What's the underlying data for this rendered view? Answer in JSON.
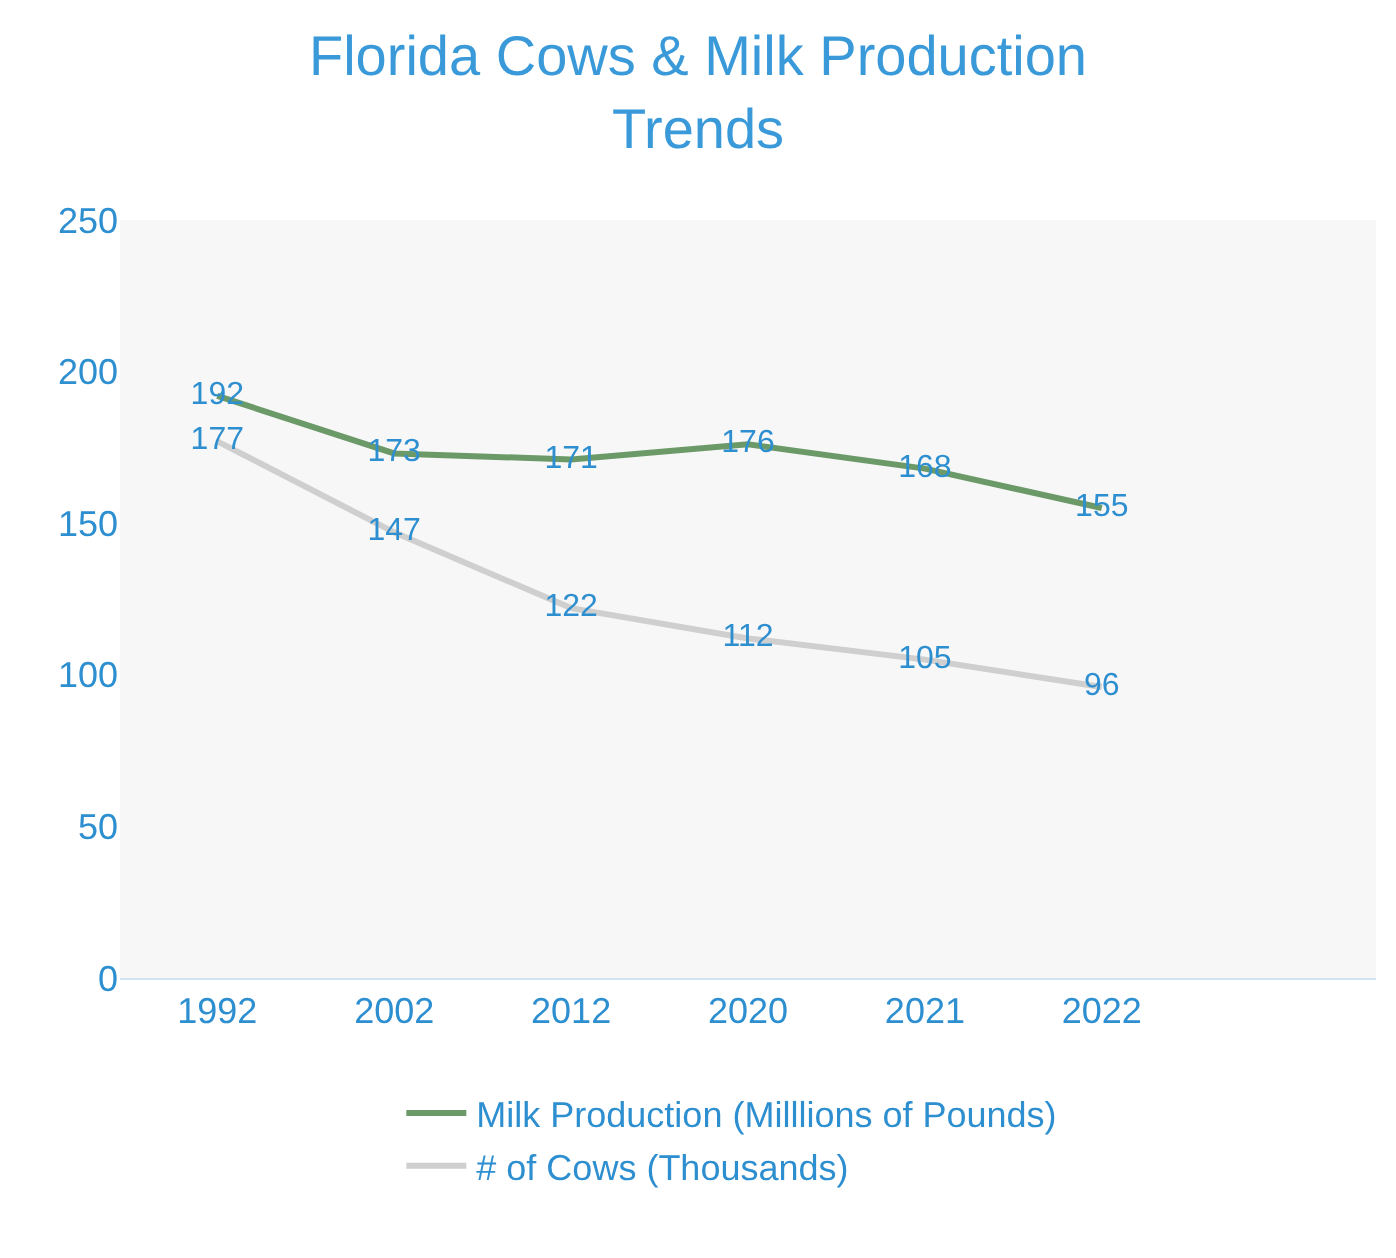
{
  "chart_data": {
    "type": "line",
    "title": "Florida Cows & Milk Production Trends",
    "categories": [
      "1992",
      "2002",
      "2012",
      "2020",
      "2021",
      "2022"
    ],
    "series": [
      {
        "name": "Milk Production (Milllions of Pounds)",
        "color": "#6b9a68",
        "values": [
          192,
          173,
          171,
          176,
          168,
          155
        ]
      },
      {
        "name": "# of Cows (Thousands)",
        "color": "#cfcfcf",
        "values": [
          177,
          147,
          122,
          112,
          105,
          96
        ]
      }
    ],
    "ylim": [
      0,
      250
    ],
    "yticks": [
      0,
      50,
      100,
      150,
      200,
      250
    ],
    "grid": false,
    "legend": "bottom",
    "marker": "none",
    "line_style": "solid",
    "data_labels": true
  }
}
